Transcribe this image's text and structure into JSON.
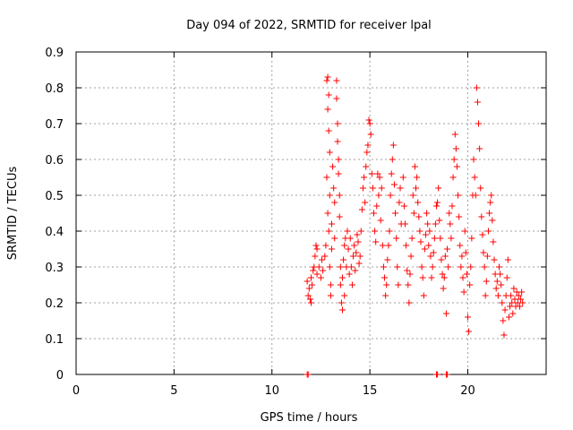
{
  "chart_data": {
    "type": "scatter",
    "title": "Day 094 of 2022, SRMTID for receiver lpal",
    "xlabel": "GPS time / hours",
    "ylabel": "SRMTID / TECUs",
    "xlim": [
      0,
      24
    ],
    "ylim": [
      0,
      0.9
    ],
    "grid": true,
    "marker": "+",
    "color": "#ff0000",
    "x_ticks": [
      0,
      5,
      10,
      15,
      20
    ],
    "x_tick_labels": [
      "0",
      "5",
      "10",
      "15",
      "20"
    ],
    "y_ticks": [
      0,
      0.1,
      0.2,
      0.3,
      0.4,
      0.5,
      0.6,
      0.7,
      0.8,
      0.9
    ],
    "y_tick_labels": [
      "0",
      "0.1",
      "0.2",
      "0.3",
      "0.4",
      "0.5",
      "0.6",
      "0.7",
      "0.8",
      "0.9"
    ],
    "series": [
      {
        "name": "SRMTID",
        "points": [
          [
            11.8,
            0.0
          ],
          [
            11.85,
            0.0
          ],
          [
            18.4,
            0.0
          ],
          [
            18.45,
            0.0
          ],
          [
            18.9,
            0.0
          ],
          [
            18.95,
            0.0
          ],
          [
            11.8,
            0.26
          ],
          [
            11.85,
            0.22
          ],
          [
            11.9,
            0.24
          ],
          [
            11.95,
            0.21
          ],
          [
            12.0,
            0.2
          ],
          [
            12.0,
            0.27
          ],
          [
            12.05,
            0.25
          ],
          [
            12.1,
            0.29
          ],
          [
            12.15,
            0.3
          ],
          [
            12.2,
            0.33
          ],
          [
            12.25,
            0.36
          ],
          [
            12.3,
            0.35
          ],
          [
            12.3,
            0.28
          ],
          [
            12.4,
            0.3
          ],
          [
            12.5,
            0.27
          ],
          [
            12.55,
            0.32
          ],
          [
            12.6,
            0.29
          ],
          [
            12.7,
            0.33
          ],
          [
            12.75,
            0.36
          ],
          [
            12.8,
            0.82
          ],
          [
            12.85,
            0.83
          ],
          [
            12.85,
            0.74
          ],
          [
            12.9,
            0.78
          ],
          [
            12.9,
            0.68
          ],
          [
            12.95,
            0.62
          ],
          [
            12.95,
            0.5
          ],
          [
            12.8,
            0.55
          ],
          [
            12.85,
            0.45
          ],
          [
            12.9,
            0.4
          ],
          [
            12.95,
            0.3
          ],
          [
            13.0,
            0.25
          ],
          [
            13.0,
            0.22
          ],
          [
            13.05,
            0.35
          ],
          [
            13.05,
            0.42
          ],
          [
            13.1,
            0.58
          ],
          [
            13.15,
            0.52
          ],
          [
            13.2,
            0.48
          ],
          [
            13.2,
            0.38
          ],
          [
            13.3,
            0.82
          ],
          [
            13.3,
            0.77
          ],
          [
            13.35,
            0.7
          ],
          [
            13.35,
            0.65
          ],
          [
            13.4,
            0.6
          ],
          [
            13.4,
            0.56
          ],
          [
            13.45,
            0.5
          ],
          [
            13.45,
            0.44
          ],
          [
            13.5,
            0.3
          ],
          [
            13.5,
            0.25
          ],
          [
            13.55,
            0.2
          ],
          [
            13.6,
            0.18
          ],
          [
            13.6,
            0.27
          ],
          [
            13.65,
            0.32
          ],
          [
            13.7,
            0.36
          ],
          [
            13.7,
            0.22
          ],
          [
            13.75,
            0.38
          ],
          [
            13.8,
            0.3
          ],
          [
            13.85,
            0.4
          ],
          [
            13.9,
            0.35
          ],
          [
            13.95,
            0.28
          ],
          [
            14.0,
            0.38
          ],
          [
            14.05,
            0.3
          ],
          [
            14.1,
            0.25
          ],
          [
            14.15,
            0.33
          ],
          [
            14.2,
            0.36
          ],
          [
            14.25,
            0.29
          ],
          [
            14.3,
            0.34
          ],
          [
            14.35,
            0.39
          ],
          [
            14.4,
            0.37
          ],
          [
            14.45,
            0.31
          ],
          [
            14.5,
            0.33
          ],
          [
            14.55,
            0.4
          ],
          [
            14.6,
            0.46
          ],
          [
            14.65,
            0.52
          ],
          [
            14.7,
            0.55
          ],
          [
            14.75,
            0.48
          ],
          [
            14.8,
            0.58
          ],
          [
            14.85,
            0.62
          ],
          [
            14.9,
            0.64
          ],
          [
            14.95,
            0.71
          ],
          [
            15.0,
            0.7
          ],
          [
            15.05,
            0.67
          ],
          [
            15.1,
            0.56
          ],
          [
            15.15,
            0.52
          ],
          [
            15.2,
            0.45
          ],
          [
            15.25,
            0.4
          ],
          [
            15.3,
            0.37
          ],
          [
            15.35,
            0.47
          ],
          [
            15.4,
            0.56
          ],
          [
            15.45,
            0.5
          ],
          [
            15.5,
            0.55
          ],
          [
            15.55,
            0.43
          ],
          [
            15.6,
            0.52
          ],
          [
            15.65,
            0.36
          ],
          [
            15.7,
            0.3
          ],
          [
            15.75,
            0.27
          ],
          [
            15.8,
            0.22
          ],
          [
            15.85,
            0.25
          ],
          [
            15.9,
            0.32
          ],
          [
            15.95,
            0.36
          ],
          [
            16.0,
            0.4
          ],
          [
            16.05,
            0.5
          ],
          [
            16.1,
            0.56
          ],
          [
            16.15,
            0.6
          ],
          [
            16.2,
            0.64
          ],
          [
            16.25,
            0.53
          ],
          [
            16.3,
            0.45
          ],
          [
            16.35,
            0.38
          ],
          [
            16.4,
            0.3
          ],
          [
            16.45,
            0.25
          ],
          [
            16.5,
            0.48
          ],
          [
            16.55,
            0.52
          ],
          [
            16.6,
            0.42
          ],
          [
            16.7,
            0.55
          ],
          [
            16.75,
            0.47
          ],
          [
            16.8,
            0.42
          ],
          [
            16.85,
            0.36
          ],
          [
            16.9,
            0.29
          ],
          [
            16.95,
            0.25
          ],
          [
            17.0,
            0.2
          ],
          [
            17.05,
            0.28
          ],
          [
            17.1,
            0.33
          ],
          [
            17.15,
            0.38
          ],
          [
            17.2,
            0.5
          ],
          [
            17.25,
            0.45
          ],
          [
            17.3,
            0.58
          ],
          [
            17.35,
            0.52
          ],
          [
            17.4,
            0.55
          ],
          [
            17.45,
            0.48
          ],
          [
            17.5,
            0.44
          ],
          [
            17.55,
            0.4
          ],
          [
            17.6,
            0.37
          ],
          [
            17.65,
            0.3
          ],
          [
            17.7,
            0.27
          ],
          [
            17.75,
            0.22
          ],
          [
            17.8,
            0.35
          ],
          [
            17.85,
            0.39
          ],
          [
            17.9,
            0.45
          ],
          [
            17.95,
            0.42
          ],
          [
            18.0,
            0.36
          ],
          [
            18.05,
            0.4
          ],
          [
            18.1,
            0.33
          ],
          [
            18.15,
            0.27
          ],
          [
            18.2,
            0.3
          ],
          [
            18.25,
            0.34
          ],
          [
            18.3,
            0.38
          ],
          [
            18.35,
            0.42
          ],
          [
            18.4,
            0.47
          ],
          [
            18.45,
            0.48
          ],
          [
            18.5,
            0.52
          ],
          [
            18.55,
            0.43
          ],
          [
            18.6,
            0.38
          ],
          [
            18.65,
            0.32
          ],
          [
            18.7,
            0.28
          ],
          [
            18.75,
            0.24
          ],
          [
            18.8,
            0.27
          ],
          [
            18.85,
            0.33
          ],
          [
            18.9,
            0.17
          ],
          [
            18.95,
            0.35
          ],
          [
            19.0,
            0.3
          ],
          [
            19.05,
            0.45
          ],
          [
            19.1,
            0.42
          ],
          [
            19.15,
            0.38
          ],
          [
            19.2,
            0.47
          ],
          [
            19.25,
            0.55
          ],
          [
            19.3,
            0.6
          ],
          [
            19.35,
            0.67
          ],
          [
            19.4,
            0.63
          ],
          [
            19.45,
            0.58
          ],
          [
            19.5,
            0.5
          ],
          [
            19.55,
            0.44
          ],
          [
            19.6,
            0.36
          ],
          [
            19.65,
            0.3
          ],
          [
            19.7,
            0.33
          ],
          [
            19.75,
            0.27
          ],
          [
            19.8,
            0.23
          ],
          [
            19.85,
            0.4
          ],
          [
            19.9,
            0.34
          ],
          [
            19.95,
            0.28
          ],
          [
            20.0,
            0.16
          ],
          [
            20.05,
            0.12
          ],
          [
            20.1,
            0.25
          ],
          [
            20.15,
            0.3
          ],
          [
            20.2,
            0.38
          ],
          [
            20.25,
            0.5
          ],
          [
            20.3,
            0.6
          ],
          [
            20.35,
            0.55
          ],
          [
            20.4,
            0.5
          ],
          [
            20.45,
            0.8
          ],
          [
            20.5,
            0.76
          ],
          [
            20.55,
            0.7
          ],
          [
            20.6,
            0.63
          ],
          [
            20.65,
            0.52
          ],
          [
            20.7,
            0.44
          ],
          [
            20.75,
            0.39
          ],
          [
            20.8,
            0.34
          ],
          [
            20.85,
            0.3
          ],
          [
            20.9,
            0.22
          ],
          [
            20.95,
            0.26
          ],
          [
            21.0,
            0.33
          ],
          [
            21.05,
            0.4
          ],
          [
            21.1,
            0.45
          ],
          [
            21.15,
            0.48
          ],
          [
            21.2,
            0.5
          ],
          [
            21.25,
            0.43
          ],
          [
            21.3,
            0.37
          ],
          [
            21.35,
            0.32
          ],
          [
            21.4,
            0.28
          ],
          [
            21.45,
            0.24
          ],
          [
            21.5,
            0.26
          ],
          [
            21.55,
            0.22
          ],
          [
            21.6,
            0.3
          ],
          [
            21.65,
            0.28
          ],
          [
            21.7,
            0.25
          ],
          [
            21.75,
            0.2
          ],
          [
            21.8,
            0.15
          ],
          [
            21.85,
            0.11
          ],
          [
            21.9,
            0.18
          ],
          [
            21.95,
            0.22
          ],
          [
            22.0,
            0.27
          ],
          [
            22.05,
            0.32
          ],
          [
            22.1,
            0.16
          ],
          [
            22.15,
            0.19
          ],
          [
            22.2,
            0.22
          ],
          [
            22.25,
            0.2
          ],
          [
            22.3,
            0.17
          ],
          [
            22.35,
            0.24
          ],
          [
            22.4,
            0.21
          ],
          [
            22.45,
            0.19
          ],
          [
            22.5,
            0.23
          ],
          [
            22.55,
            0.2
          ],
          [
            22.6,
            0.22
          ],
          [
            22.65,
            0.19
          ],
          [
            22.7,
            0.21
          ],
          [
            22.75,
            0.23
          ],
          [
            22.8,
            0.2
          ]
        ]
      }
    ]
  }
}
